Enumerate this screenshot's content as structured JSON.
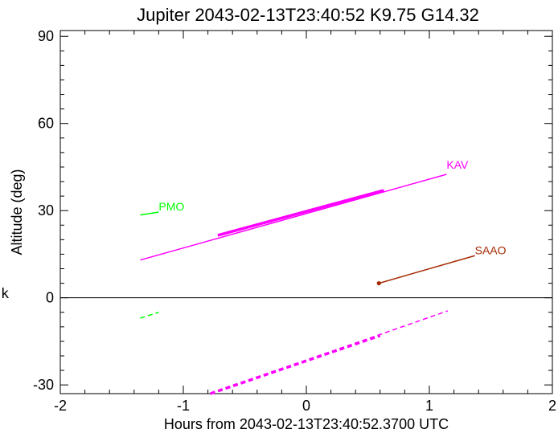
{
  "chart_data": {
    "type": "line",
    "title": "Jupiter 2043-02-13T23:40:52  K9.75  G14.32",
    "xlabel": "Hours from 2043-02-13T23:40:52.3700 UTC",
    "ylabel": "Altitude (deg)",
    "side_letter": "k",
    "xlim": [
      -2.0,
      2.0
    ],
    "ylim": [
      -33,
      92
    ],
    "xticks": [
      -2,
      -1,
      0,
      1,
      2
    ],
    "xtick_labels": [
      "-2",
      "-1",
      "0",
      "1",
      "2"
    ],
    "yticks": [
      -30,
      0,
      30,
      60,
      90
    ],
    "ytick_labels": [
      "-30",
      "0",
      "30",
      "60",
      "90"
    ],
    "reference_line_y": 0,
    "series": [
      {
        "name": "KAV",
        "color": "#ff00ff",
        "label_at": [
          1.14,
          44.5
        ],
        "segments": [
          {
            "style": "solid",
            "x": [
              -1.35,
              1.14
            ],
            "y": [
              13.0,
              42.5
            ]
          },
          {
            "style": "solid-thick",
            "x": [
              -0.72,
              0.63
            ],
            "y": [
              21.5,
              37.0
            ]
          },
          {
            "style": "dashed",
            "x": [
              -0.78,
              1.15
            ],
            "y": [
              -33.0,
              -4.5
            ]
          },
          {
            "style": "dashed-thick",
            "x": [
              -0.78,
              0.6
            ],
            "y": [
              -33.0,
              -13.0
            ]
          }
        ]
      },
      {
        "name": "PMO",
        "color": "#00ff00",
        "label_at": [
          -1.2,
          30.0
        ],
        "segments": [
          {
            "style": "solid",
            "x": [
              -1.35,
              -1.2
            ],
            "y": [
              28.5,
              29.5
            ]
          },
          {
            "style": "dashed",
            "x": [
              -1.35,
              -1.2
            ],
            "y": [
              -7.0,
              -5.0
            ]
          }
        ]
      },
      {
        "name": "SAAO",
        "color": "#a52a00",
        "label_at": [
          1.37,
          15.0
        ],
        "start_marker": [
          0.59,
          5.0
        ],
        "segments": [
          {
            "style": "solid",
            "x": [
              0.59,
              1.37
            ],
            "y": [
              5.0,
              14.5
            ]
          }
        ]
      }
    ]
  }
}
